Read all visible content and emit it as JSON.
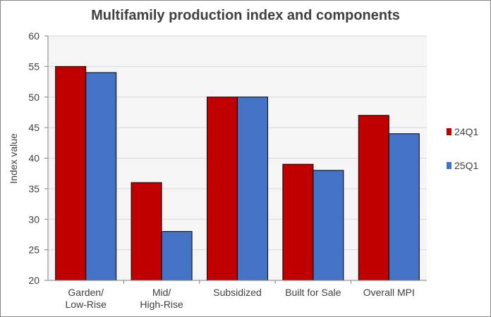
{
  "chart_data": {
    "type": "bar",
    "title": "Multifamily  production index and components",
    "xlabel": "",
    "ylabel": "Index value",
    "ylim": [
      20,
      60
    ],
    "yticks": [
      20,
      25,
      30,
      35,
      40,
      45,
      50,
      55,
      60
    ],
    "grid": true,
    "legend_position": "right",
    "categories": [
      [
        "Garden/",
        "Low-Rise"
      ],
      [
        "Mid/",
        "High-Rise"
      ],
      [
        "Subsidized"
      ],
      [
        "Built for Sale"
      ],
      [
        "Overall MPI"
      ]
    ],
    "series": [
      {
        "name": "24Q1",
        "color": "#c00000",
        "values": [
          55,
          36,
          50,
          39,
          47
        ]
      },
      {
        "name": "25Q1",
        "color": "#4472c4",
        "values": [
          54,
          28,
          50,
          38,
          44
        ]
      }
    ],
    "colors": {
      "plot_background": "#f5f5f5",
      "gridline": "#d9d9d9",
      "axis": "#808080"
    }
  }
}
